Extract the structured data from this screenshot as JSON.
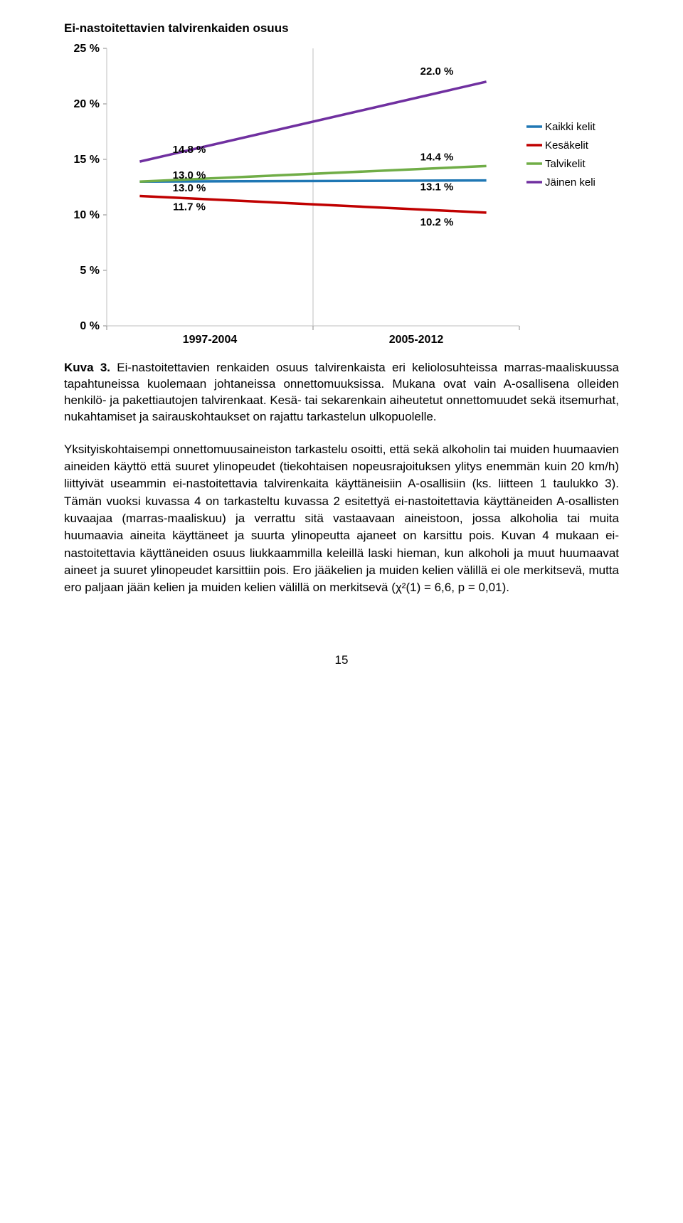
{
  "chart": {
    "title": "Ei-nastoitettavien talvirenkaiden osuus",
    "type": "line",
    "categories": [
      "1997-2004",
      "2005-2012"
    ],
    "legend": [
      {
        "label": "Kaikki kelit",
        "color": "#1f77b4"
      },
      {
        "label": "Kesäkelit",
        "color": "#c00000"
      },
      {
        "label": "Talvikelit",
        "color": "#70ad47"
      },
      {
        "label": "Jäinen keli",
        "color": "#7030a0"
      }
    ],
    "ylabel_ticks": [
      "0 %",
      "5 %",
      "10 %",
      "15 %",
      "20 %",
      "25 %"
    ],
    "ylim": [
      0,
      25
    ],
    "series": [
      {
        "name": "Kaikki kelit",
        "color": "#1f77b4",
        "values": [
          13.0,
          13.1
        ],
        "labels": [
          "13.0 %",
          "13.1 %"
        ]
      },
      {
        "name": "Kesäkelit",
        "color": "#c00000",
        "values": [
          11.7,
          10.2
        ],
        "labels": [
          "11.7 %",
          "10.2 %"
        ]
      },
      {
        "name": "Talvikelit",
        "color": "#70ad47",
        "values": [
          13.0,
          14.4
        ],
        "labels": [
          "13.0 %",
          "14.4 %"
        ]
      },
      {
        "name": "Jäinen keli",
        "color": "#7030a0",
        "values": [
          14.8,
          22.0
        ],
        "labels": [
          "14.8 %",
          "22.0 %"
        ]
      }
    ],
    "line_width": 3.5,
    "title_fontsize": 17,
    "tick_fontsize": 16,
    "label_fontsize": 15,
    "legend_fontsize": 15,
    "background": "#ffffff",
    "axis_color": "#bfbfbf",
    "tick_mark_color": "#888888"
  },
  "caption": {
    "kuva": "Kuva 3.",
    "text": " Ei-nastoitettavien renkaiden osuus talvirenkaista eri keliolosuhteissa marras-maaliskuussa tapahtuneissa kuolemaan johtaneissa onnettomuuksissa. Mukana ovat vain A-osallisena olleiden henkilö- ja pakettiautojen talvirenkaat. Kesä- tai sekarenkain aiheutetut onnettomuudet sekä itsemurhat, nukahtamiset ja sairauskohtaukset on rajattu tarkastelun ulkopuolelle."
  },
  "paragraph": "Yksityiskohtaisempi onnettomuusaineiston tarkastelu osoitti, että sekä alkoholin tai muiden huumaavien aineiden käyttö että suuret ylinopeudet (tiekohtaisen nopeusrajoituksen ylitys enemmän kuin 20 km/h) liittyivät useammin ei-nastoitettavia talvirenkaita käyttäneisiin A-osallisiin (ks. liitteen 1 taulukko 3). Tämän vuoksi kuvassa 4 on tarkasteltu kuvassa 2 esitettyä ei-nastoitettavia käyttäneiden A-osallisten kuvaajaa (marras-maaliskuu) ja verrattu sitä vastaavaan aineistoon, jossa alkoholia tai muita huumaavia aineita käyttäneet ja suurta ylinopeutta ajaneet on karsittu pois. Kuvan 4 mukaan ei-nastoitettavia käyttäneiden osuus liukkaammilla keleillä laski hieman, kun alkoholi ja muut huumaavat aineet ja suuret ylinopeudet karsittiin pois. Ero jääkelien ja muiden kelien välillä ei ole merkitsevä, mutta ero paljaan jään kelien ja muiden kelien välillä on merkitsevä (χ²(1) = 6,6, p = 0,01).",
  "page_number": "15"
}
